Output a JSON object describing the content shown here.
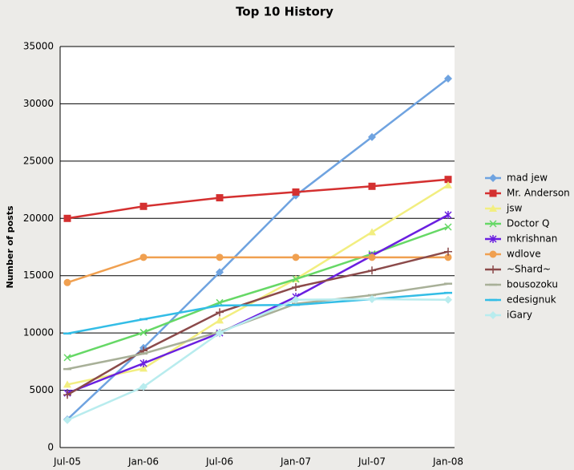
{
  "chart_data": {
    "type": "line",
    "title": "Top 10 History",
    "y_label": "Number of posts",
    "categories": [
      "Jul-05",
      "Jan-06",
      "Jul-06",
      "Jan-07",
      "Jul-07",
      "Jan-08"
    ],
    "ylim": [
      0,
      35000
    ],
    "yticks": [
      0,
      5000,
      10000,
      15000,
      20000,
      25000,
      30000,
      35000
    ],
    "grid": true,
    "legend": "right",
    "series": [
      {
        "name": "mad jew",
        "color": "#6fa3e0",
        "marker": "diamond",
        "values": [
          2450,
          8700,
          15300,
          22000,
          27100,
          32200
        ]
      },
      {
        "name": "Mr. Anderson",
        "color": "#d43030",
        "marker": "square",
        "values": [
          20000,
          21050,
          21800,
          22300,
          22800,
          23400
        ]
      },
      {
        "name": "jsw",
        "color": "#f2ee80",
        "marker": "triangle",
        "values": [
          5500,
          6900,
          11100,
          14700,
          18800,
          22900
        ]
      },
      {
        "name": "Doctor Q",
        "color": "#66d866",
        "marker": "x",
        "values": [
          7850,
          10050,
          12650,
          14700,
          16900,
          19250
        ]
      },
      {
        "name": "mkrishnan",
        "color": "#6a1fe0",
        "marker": "star",
        "values": [
          4750,
          7350,
          10000,
          13150,
          16750,
          20300
        ]
      },
      {
        "name": "wdlove",
        "color": "#f0a050",
        "marker": "circle",
        "values": [
          14400,
          16600,
          16600,
          16600,
          16600,
          16600
        ]
      },
      {
        "name": "~Shard~",
        "color": "#8b4a4a",
        "marker": "plus",
        "values": [
          4600,
          8450,
          11800,
          14000,
          15450,
          17100
        ]
      },
      {
        "name": "bousozoku",
        "color": "#a8b098",
        "marker": "dash",
        "values": [
          6850,
          8200,
          10100,
          12550,
          13300,
          14300
        ]
      },
      {
        "name": "edesignuk",
        "color": "#33bde6",
        "marker": "dash",
        "values": [
          9950,
          11200,
          12400,
          12450,
          12950,
          13500
        ]
      },
      {
        "name": "iGary",
        "color": "#b8ecee",
        "marker": "diamond",
        "values": [
          2400,
          5300,
          10000,
          12900,
          12950,
          12900
        ]
      }
    ]
  }
}
